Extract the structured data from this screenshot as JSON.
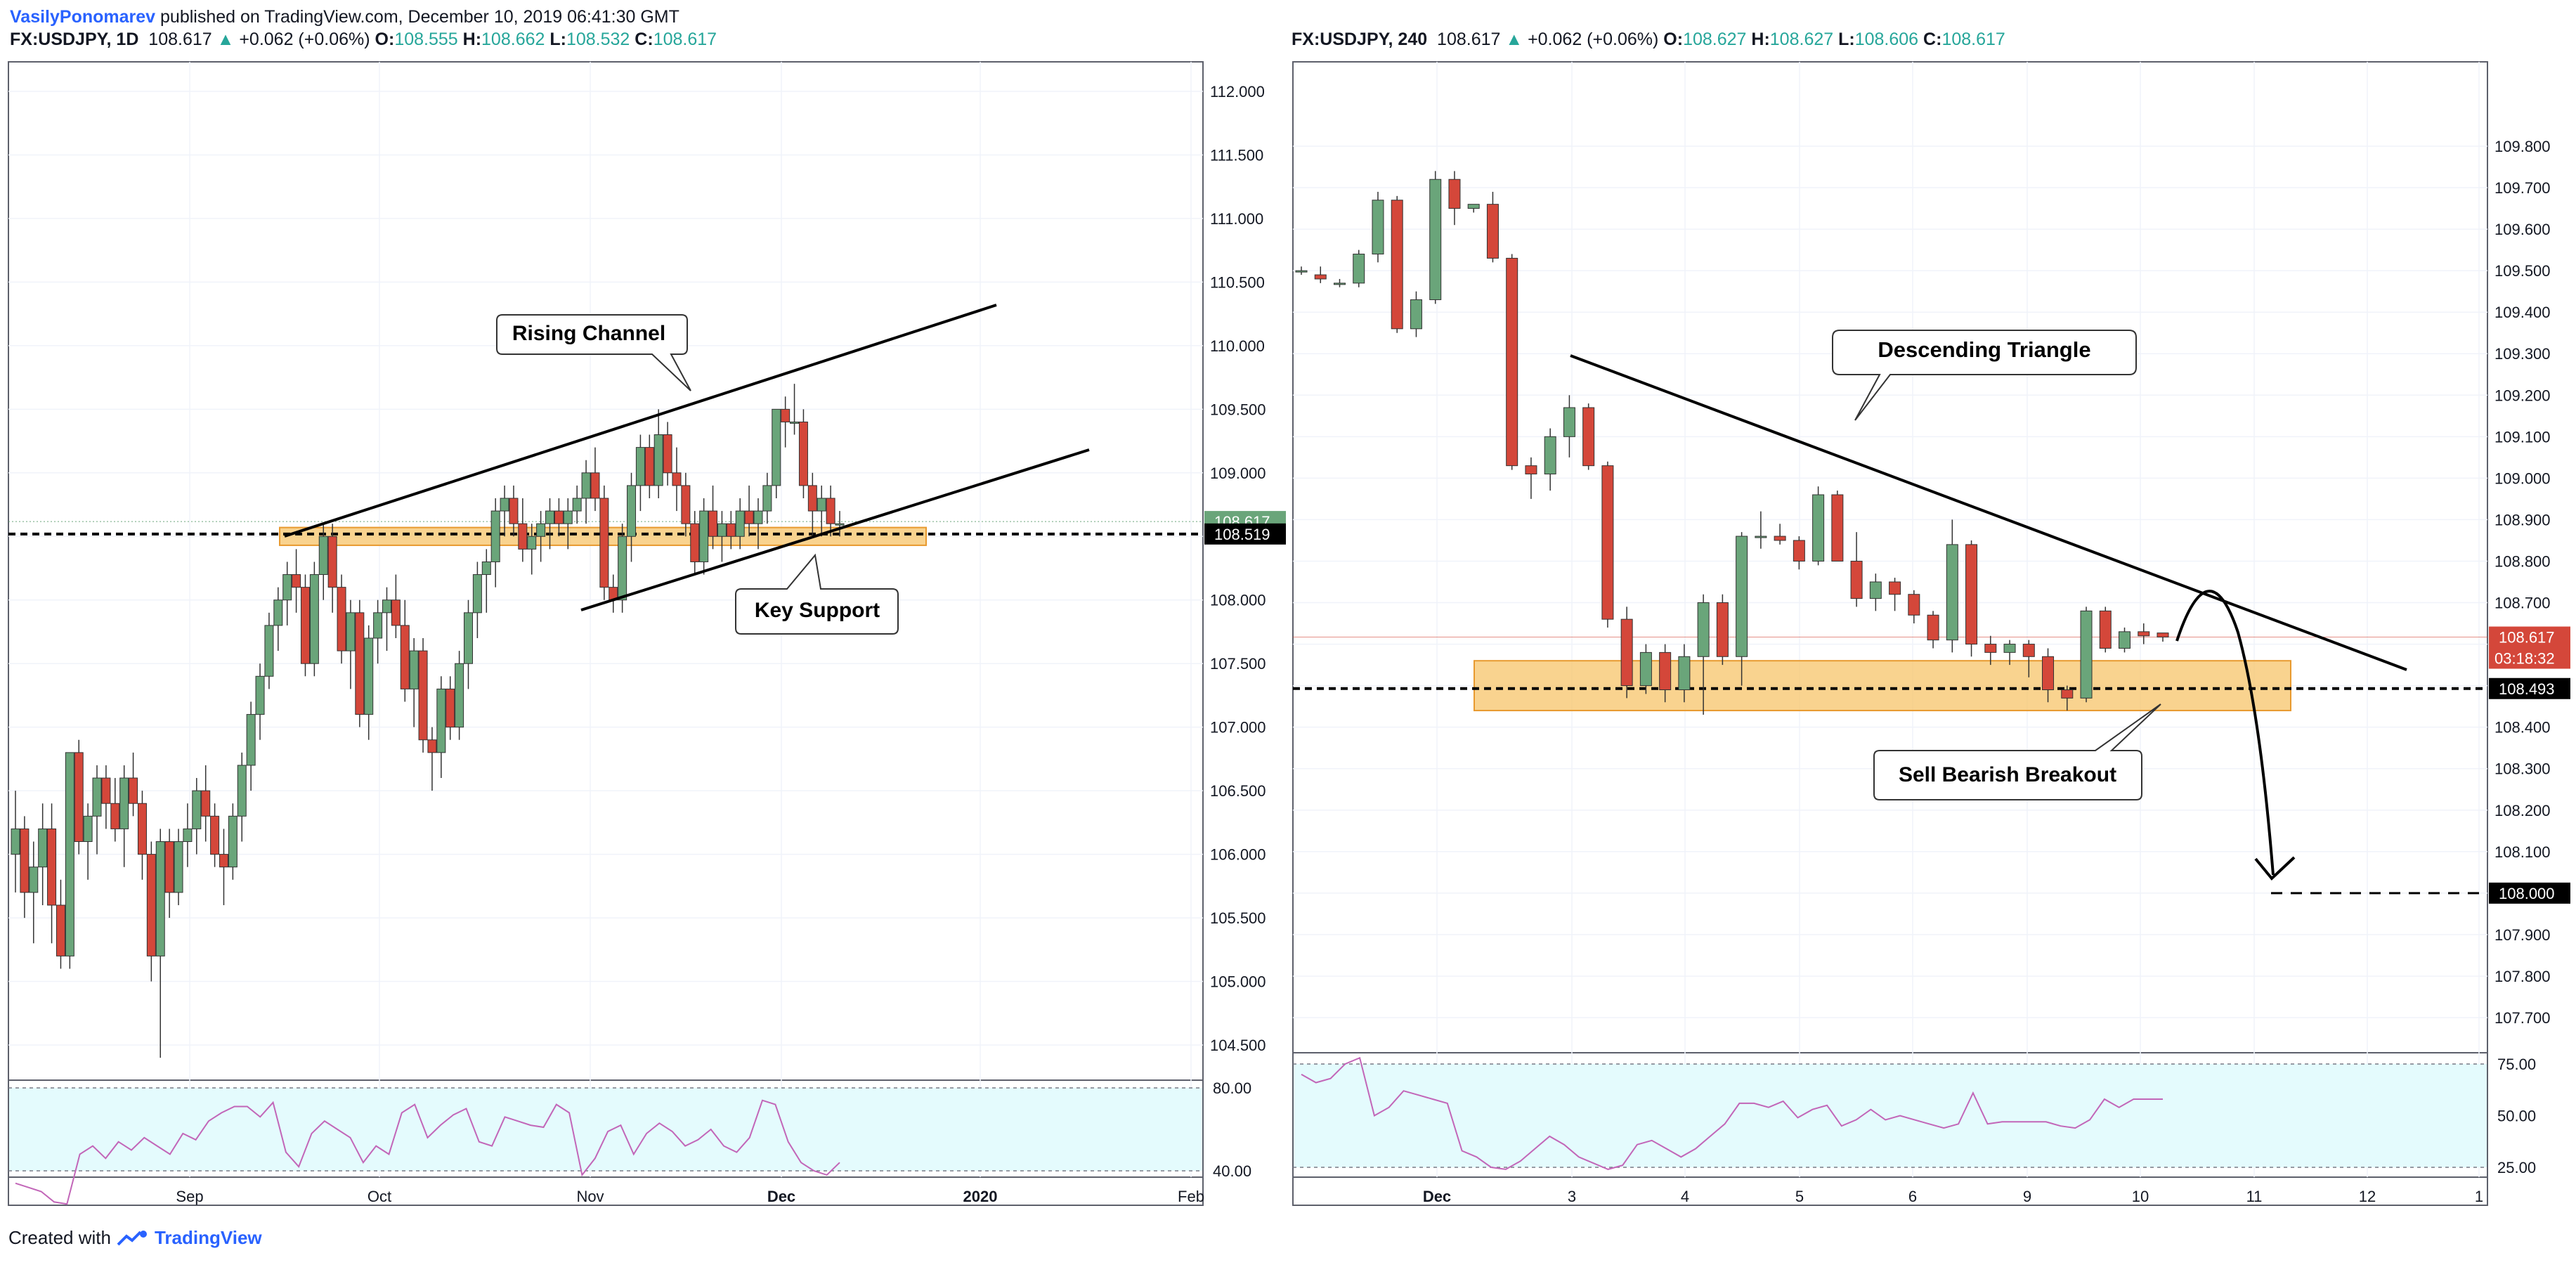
{
  "header": {
    "author": "VasilyPonomarev",
    "published_text": "published on TradingView.com, December 10, 2019 06:41:30 GMT"
  },
  "footer": {
    "created_with": "Created with",
    "brand": "TradingView",
    "logo_icon": "tradingview-logo-icon"
  },
  "colors": {
    "bull": "#6aa57a",
    "bear": "#d4473a",
    "zone": "#f7c46a",
    "rsi_fill": "#e4fbfd",
    "rsi_line": "#c266b8",
    "accent": "#2962ff",
    "price_tag": "#d4473a"
  },
  "left_chart": {
    "symbol_line": {
      "symbol": "FX:USDJPY, 1D",
      "price": "108.617",
      "change": "+0.062 (+0.06%)",
      "o_label": "O:",
      "o": "108.555",
      "h_label": "H:",
      "h": "108.662",
      "l_label": "L:",
      "l": "108.532",
      "c_label": "C:",
      "c": "108.617"
    },
    "price_tag_current": "108.617",
    "price_tag_support": "108.519",
    "rsi_ticks": [
      "80.00",
      "40.00"
    ],
    "annotations": {
      "channel": "Rising Channel",
      "support": "Key Support"
    }
  },
  "right_chart": {
    "symbol_line": {
      "symbol": "FX:USDJPY, 240",
      "price": "108.617",
      "change": "+0.062 (+0.06%)",
      "o_label": "O:",
      "o": "108.627",
      "h_label": "H:",
      "h": "108.627",
      "l_label": "L:",
      "l": "108.606",
      "c_label": "C:",
      "c": "108.617"
    },
    "price_tag_current": "108.617",
    "countdown": "03:18:32",
    "price_tag_support": "108.493",
    "price_tag_target": "108.000",
    "rsi_ticks": [
      "75.00",
      "50.00",
      "25.00"
    ],
    "annotations": {
      "triangle": "Descending Triangle",
      "breakout": "Sell Bearish Breakout"
    }
  },
  "chart_data": [
    {
      "type": "candlestick",
      "title": "FX:USDJPY, 1D",
      "xlabel": "",
      "ylabel": "",
      "ylim": [
        104.25,
        112.3
      ],
      "y_ticks": [
        "112.000",
        "111.500",
        "111.000",
        "110.500",
        "110.000",
        "109.500",
        "109.000",
        "108.500",
        "108.000",
        "107.500",
        "107.000",
        "106.500",
        "106.000",
        "105.500",
        "105.000",
        "104.500"
      ],
      "x_ticks": [
        "Sep",
        "Oct",
        "Nov",
        "Dec",
        "2020",
        "Feb"
      ],
      "ohlc": [
        [
          106.0,
          106.5,
          105.7,
          106.2
        ],
        [
          106.2,
          106.3,
          105.5,
          105.7
        ],
        [
          105.7,
          106.1,
          105.3,
          105.9
        ],
        [
          105.9,
          106.4,
          105.6,
          106.2
        ],
        [
          106.2,
          106.4,
          105.3,
          105.6
        ],
        [
          105.6,
          105.8,
          105.1,
          105.2
        ],
        [
          105.2,
          106.8,
          105.1,
          106.8
        ],
        [
          106.8,
          106.9,
          106.0,
          106.1
        ],
        [
          106.1,
          106.4,
          105.8,
          106.3
        ],
        [
          106.3,
          106.7,
          106.0,
          106.6
        ],
        [
          106.6,
          106.7,
          106.2,
          106.4
        ],
        [
          106.4,
          106.6,
          106.1,
          106.2
        ],
        [
          106.2,
          106.7,
          105.9,
          106.6
        ],
        [
          106.6,
          106.8,
          106.3,
          106.4
        ],
        [
          106.4,
          106.5,
          105.8,
          106.0
        ],
        [
          106.0,
          106.1,
          105.0,
          105.2
        ],
        [
          105.2,
          106.2,
          104.4,
          106.1
        ],
        [
          106.1,
          106.2,
          105.5,
          105.7
        ],
        [
          105.7,
          106.2,
          105.6,
          106.1
        ],
        [
          106.1,
          106.4,
          105.9,
          106.2
        ],
        [
          106.2,
          106.6,
          106.0,
          106.5
        ],
        [
          106.5,
          106.7,
          106.1,
          106.3
        ],
        [
          106.3,
          106.4,
          105.9,
          106.0
        ],
        [
          106.0,
          106.2,
          105.6,
          105.9
        ],
        [
          105.9,
          106.4,
          105.8,
          106.3
        ],
        [
          106.3,
          106.8,
          106.1,
          106.7
        ],
        [
          106.7,
          107.2,
          106.5,
          107.1
        ],
        [
          107.1,
          107.5,
          106.9,
          107.4
        ],
        [
          107.4,
          107.9,
          107.3,
          107.8
        ],
        [
          107.8,
          108.1,
          107.6,
          108.0
        ],
        [
          108.0,
          108.3,
          107.8,
          108.2
        ],
        [
          108.2,
          108.4,
          107.9,
          108.1
        ],
        [
          108.1,
          108.2,
          107.4,
          107.5
        ],
        [
          107.5,
          108.3,
          107.4,
          108.2
        ],
        [
          108.2,
          108.6,
          108.0,
          108.5
        ],
        [
          108.5,
          108.6,
          107.9,
          108.1
        ],
        [
          108.1,
          108.2,
          107.5,
          107.6
        ],
        [
          107.6,
          108.0,
          107.3,
          107.9
        ],
        [
          107.9,
          108.0,
          107.0,
          107.1
        ],
        [
          107.1,
          107.8,
          106.9,
          107.7
        ],
        [
          107.7,
          108.0,
          107.5,
          107.9
        ],
        [
          107.9,
          108.1,
          107.6,
          108.0
        ],
        [
          108.0,
          108.2,
          107.7,
          107.8
        ],
        [
          107.8,
          108.0,
          107.2,
          107.3
        ],
        [
          107.3,
          107.7,
          107.0,
          107.6
        ],
        [
          107.6,
          107.7,
          106.8,
          106.9
        ],
        [
          106.9,
          107.0,
          106.5,
          106.8
        ],
        [
          106.8,
          107.4,
          106.6,
          107.3
        ],
        [
          107.3,
          107.4,
          106.9,
          107.0
        ],
        [
          107.0,
          107.6,
          106.9,
          107.5
        ],
        [
          107.5,
          108.0,
          107.3,
          107.9
        ],
        [
          107.9,
          108.3,
          107.7,
          108.2
        ],
        [
          108.2,
          108.4,
          107.9,
          108.3
        ],
        [
          108.3,
          108.8,
          108.1,
          108.7
        ],
        [
          108.7,
          108.9,
          108.5,
          108.8
        ],
        [
          108.8,
          108.9,
          108.5,
          108.6
        ],
        [
          108.6,
          108.8,
          108.3,
          108.4
        ],
        [
          108.4,
          108.6,
          108.2,
          108.5
        ],
        [
          108.5,
          108.7,
          108.3,
          108.6
        ],
        [
          108.6,
          108.8,
          108.4,
          108.7
        ],
        [
          108.7,
          108.8,
          108.5,
          108.6
        ],
        [
          108.6,
          108.8,
          108.4,
          108.7
        ],
        [
          108.7,
          108.9,
          108.6,
          108.8
        ],
        [
          108.8,
          109.1,
          108.6,
          109.0
        ],
        [
          109.0,
          109.2,
          108.7,
          108.8
        ],
        [
          108.8,
          108.9,
          108.0,
          108.1
        ],
        [
          108.1,
          108.2,
          107.9,
          108.0
        ],
        [
          108.0,
          108.6,
          107.9,
          108.5
        ],
        [
          108.5,
          109.0,
          108.3,
          108.9
        ],
        [
          108.9,
          109.3,
          108.7,
          109.2
        ],
        [
          109.2,
          109.3,
          108.8,
          108.9
        ],
        [
          108.9,
          109.5,
          108.8,
          109.3
        ],
        [
          109.3,
          109.4,
          108.9,
          109.0
        ],
        [
          109.0,
          109.2,
          108.7,
          108.9
        ],
        [
          108.9,
          109.0,
          108.5,
          108.6
        ],
        [
          108.6,
          108.7,
          108.2,
          108.3
        ],
        [
          108.3,
          108.8,
          108.2,
          108.7
        ],
        [
          108.7,
          108.9,
          108.4,
          108.5
        ],
        [
          108.5,
          108.7,
          108.3,
          108.6
        ],
        [
          108.6,
          108.7,
          108.4,
          108.5
        ],
        [
          108.5,
          108.8,
          108.4,
          108.7
        ],
        [
          108.7,
          108.9,
          108.5,
          108.6
        ],
        [
          108.6,
          108.8,
          108.4,
          108.7
        ],
        [
          108.7,
          109.0,
          108.6,
          108.9
        ],
        [
          108.9,
          109.5,
          108.8,
          109.5
        ],
        [
          109.5,
          109.6,
          109.2,
          109.4
        ],
        [
          109.4,
          109.7,
          109.3,
          109.4
        ],
        [
          109.4,
          109.5,
          108.8,
          108.9
        ],
        [
          108.9,
          109.0,
          108.5,
          108.7
        ],
        [
          108.7,
          108.9,
          108.5,
          108.8
        ],
        [
          108.8,
          108.9,
          108.5,
          108.6
        ],
        [
          108.6,
          108.7,
          108.5,
          108.6
        ]
      ],
      "rsi": [
        34,
        32,
        30,
        25,
        24,
        48,
        52,
        46,
        54,
        50,
        56,
        52,
        48,
        58,
        55,
        64,
        68,
        71,
        71,
        66,
        73,
        49,
        42,
        58,
        64,
        60,
        56,
        44,
        52,
        48,
        68,
        72,
        56,
        62,
        67,
        70,
        54,
        52,
        66,
        64,
        62,
        61,
        72,
        68,
        38,
        46,
        59,
        62,
        48,
        58,
        63,
        59,
        52,
        55,
        60,
        52,
        49,
        56,
        74,
        72,
        54,
        44,
        40,
        38,
        44
      ],
      "rsi_ticks": [
        80,
        40
      ],
      "annotations": [
        "Rising Channel",
        "Key Support"
      ],
      "support_zone": [
        108.43,
        108.57
      ],
      "support_level": 108.519,
      "current_price": 108.617
    },
    {
      "type": "candlestick",
      "title": "FX:USDJPY, 240",
      "xlabel": "",
      "ylabel": "",
      "ylim": [
        107.63,
        109.85
      ],
      "y_ticks": [
        "109.800",
        "109.700",
        "109.600",
        "109.500",
        "109.400",
        "109.300",
        "109.200",
        "109.100",
        "109.000",
        "108.900",
        "108.800",
        "108.700",
        "108.600",
        "108.500",
        "108.400",
        "108.300",
        "108.200",
        "108.100",
        "108.000",
        "107.900",
        "107.800",
        "107.700"
      ],
      "x_ticks": [
        "Dec",
        "3",
        "4",
        "5",
        "6",
        "9",
        "10",
        "11",
        "12",
        "1"
      ],
      "ohlc": [
        [
          109.5,
          109.51,
          109.49,
          109.5
        ],
        [
          109.49,
          109.51,
          109.47,
          109.48
        ],
        [
          109.47,
          109.48,
          109.46,
          109.47
        ],
        [
          109.47,
          109.55,
          109.46,
          109.54
        ],
        [
          109.54,
          109.69,
          109.52,
          109.67
        ],
        [
          109.67,
          109.68,
          109.35,
          109.36
        ],
        [
          109.36,
          109.45,
          109.34,
          109.43
        ],
        [
          109.43,
          109.74,
          109.42,
          109.72
        ],
        [
          109.72,
          109.74,
          109.61,
          109.65
        ],
        [
          109.65,
          109.66,
          109.64,
          109.66
        ],
        [
          109.66,
          109.69,
          109.52,
          109.53
        ],
        [
          109.53,
          109.54,
          109.02,
          109.03
        ],
        [
          109.03,
          109.05,
          108.95,
          109.01
        ],
        [
          109.01,
          109.12,
          108.97,
          109.1
        ],
        [
          109.1,
          109.2,
          109.05,
          109.17
        ],
        [
          109.17,
          109.18,
          109.02,
          109.03
        ],
        [
          109.03,
          109.04,
          108.64,
          108.66
        ],
        [
          108.66,
          108.69,
          108.47,
          108.5
        ],
        [
          108.5,
          108.6,
          108.48,
          108.58
        ],
        [
          108.58,
          108.6,
          108.46,
          108.49
        ],
        [
          108.49,
          108.6,
          108.46,
          108.57
        ],
        [
          108.57,
          108.72,
          108.43,
          108.7
        ],
        [
          108.7,
          108.72,
          108.55,
          108.57
        ],
        [
          108.57,
          108.87,
          108.5,
          108.86
        ],
        [
          108.86,
          108.92,
          108.83,
          108.86
        ],
        [
          108.86,
          108.89,
          108.84,
          108.85
        ],
        [
          108.85,
          108.86,
          108.78,
          108.8
        ],
        [
          108.8,
          108.98,
          108.79,
          108.96
        ],
        [
          108.96,
          108.97,
          108.82,
          108.8
        ],
        [
          108.8,
          108.87,
          108.69,
          108.71
        ],
        [
          108.71,
          108.77,
          108.68,
          108.75
        ],
        [
          108.75,
          108.76,
          108.68,
          108.72
        ],
        [
          108.72,
          108.73,
          108.65,
          108.67
        ],
        [
          108.67,
          108.68,
          108.59,
          108.61
        ],
        [
          108.61,
          108.9,
          108.58,
          108.84
        ],
        [
          108.84,
          108.85,
          108.57,
          108.6
        ],
        [
          108.6,
          108.62,
          108.55,
          108.58
        ],
        [
          108.58,
          108.61,
          108.55,
          108.6
        ],
        [
          108.6,
          108.61,
          108.52,
          108.57
        ],
        [
          108.57,
          108.59,
          108.46,
          108.49
        ],
        [
          108.49,
          108.5,
          108.44,
          108.47
        ],
        [
          108.47,
          108.69,
          108.46,
          108.68
        ],
        [
          108.68,
          108.69,
          108.58,
          108.59
        ],
        [
          108.59,
          108.64,
          108.58,
          108.63
        ],
        [
          108.63,
          108.65,
          108.6,
          108.62
        ],
        [
          108.627,
          108.627,
          108.606,
          108.617
        ]
      ],
      "rsi": [
        70,
        66,
        68,
        75,
        78,
        50,
        54,
        62,
        60,
        58,
        56,
        33,
        30,
        25,
        24,
        28,
        34,
        40,
        36,
        30,
        27,
        24,
        26,
        36,
        38,
        34,
        30,
        34,
        40,
        46,
        56,
        56,
        54,
        57,
        49,
        53,
        55,
        45,
        48,
        53,
        48,
        50,
        48,
        46,
        44,
        46,
        61,
        46,
        47,
        47,
        47,
        47,
        45,
        44,
        48,
        58,
        54,
        58,
        58,
        58
      ],
      "rsi_ticks": [
        75,
        50,
        25
      ],
      "annotations": [
        "Descending Triangle",
        "Sell Bearish Breakout"
      ],
      "support_zone": [
        108.44,
        108.56
      ],
      "support_level": 108.493,
      "target_level": 108.0,
      "current_price": 108.617
    }
  ]
}
